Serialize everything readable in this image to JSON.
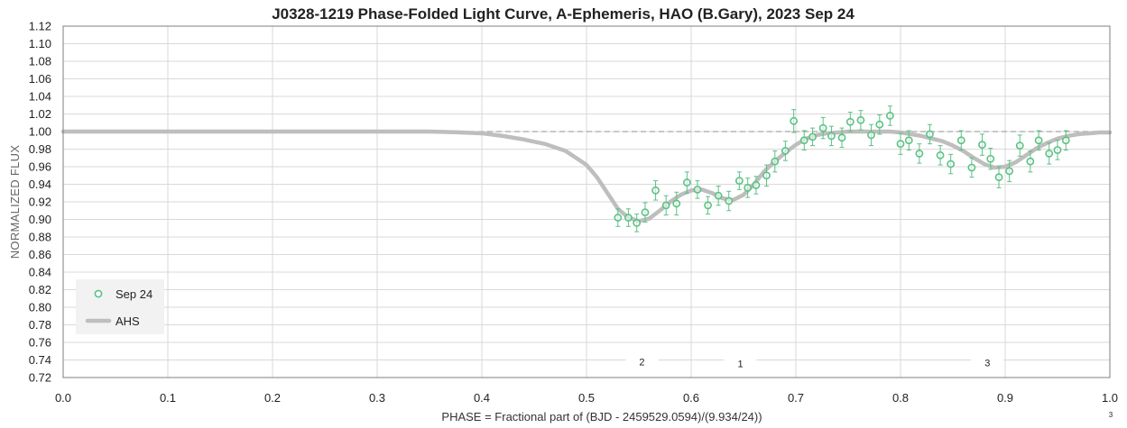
{
  "chart_data": {
    "type": "scatter",
    "title": "J0328-1219 Phase-Folded Light Curve, A-Ephemeris, HAO (B.Gary), 2023 Sep 24",
    "xlabel": "PHASE = Fractional part of (BJD - 2459529.0594)/(9.934/24))",
    "ylabel": "NORMALIZED FLUX",
    "xlim": [
      0.0,
      1.0
    ],
    "ylim": [
      0.72,
      1.12
    ],
    "x_ticks": [
      "0.0",
      "0.1",
      "0.2",
      "0.3",
      "0.4",
      "0.5",
      "0.6",
      "0.7",
      "0.8",
      "0.9",
      "1.0"
    ],
    "y_ticks": [
      "0.72",
      "0.74",
      "0.76",
      "0.78",
      "0.80",
      "0.82",
      "0.84",
      "0.86",
      "0.88",
      "0.90",
      "0.92",
      "0.94",
      "0.96",
      "0.98",
      "1.00",
      "1.02",
      "1.04",
      "1.06",
      "1.08",
      "1.10",
      "1.12"
    ],
    "grid": true,
    "reference_line": 1.0,
    "legend_position": "bottom-left",
    "series": [
      {
        "name": "Sep 24",
        "style": "markers-with-errorbars",
        "color": "#5cc185",
        "x": [
          0.53,
          0.54,
          0.548,
          0.556,
          0.566,
          0.576,
          0.586,
          0.596,
          0.606,
          0.616,
          0.626,
          0.636,
          0.646,
          0.654,
          0.662,
          0.672,
          0.68,
          0.69,
          0.698,
          0.708,
          0.716,
          0.726,
          0.734,
          0.744,
          0.752,
          0.762,
          0.772,
          0.78,
          0.79,
          0.8,
          0.808,
          0.818,
          0.828,
          0.838,
          0.848,
          0.858,
          0.868,
          0.878,
          0.886,
          0.894,
          0.904,
          0.914,
          0.924,
          0.932,
          0.942,
          0.95,
          0.958
        ],
        "y": [
          0.902,
          0.902,
          0.896,
          0.908,
          0.933,
          0.916,
          0.918,
          0.942,
          0.934,
          0.916,
          0.927,
          0.921,
          0.944,
          0.936,
          0.939,
          0.95,
          0.966,
          0.978,
          1.012,
          0.99,
          0.994,
          1.004,
          0.995,
          0.993,
          1.011,
          1.013,
          0.996,
          1.008,
          1.018,
          0.986,
          0.99,
          0.975,
          0.997,
          0.973,
          0.963,
          0.99,
          0.959,
          0.985,
          0.969,
          0.948,
          0.955,
          0.984,
          0.966,
          0.99,
          0.975,
          0.979,
          0.99
        ],
        "yerr": [
          0.01,
          0.01,
          0.01,
          0.011,
          0.011,
          0.011,
          0.013,
          0.012,
          0.01,
          0.01,
          0.011,
          0.011,
          0.01,
          0.011,
          0.01,
          0.012,
          0.012,
          0.011,
          0.013,
          0.011,
          0.01,
          0.012,
          0.011,
          0.011,
          0.011,
          0.011,
          0.012,
          0.011,
          0.011,
          0.012,
          0.011,
          0.011,
          0.011,
          0.011,
          0.011,
          0.011,
          0.011,
          0.012,
          0.012,
          0.012,
          0.012,
          0.012,
          0.012,
          0.011,
          0.012,
          0.011,
          0.011
        ]
      },
      {
        "name": "AHS",
        "style": "line",
        "color": "#bebebe",
        "x": [
          0.0,
          0.35,
          0.38,
          0.4,
          0.42,
          0.44,
          0.46,
          0.48,
          0.5,
          0.51,
          0.52,
          0.53,
          0.54,
          0.55,
          0.56,
          0.57,
          0.58,
          0.59,
          0.6,
          0.61,
          0.62,
          0.63,
          0.64,
          0.65,
          0.66,
          0.67,
          0.68,
          0.69,
          0.7,
          0.71,
          0.72,
          0.73,
          0.74,
          0.75,
          0.76,
          0.77,
          0.78,
          0.79,
          0.8,
          0.81,
          0.82,
          0.83,
          0.84,
          0.85,
          0.86,
          0.87,
          0.88,
          0.89,
          0.9,
          0.91,
          0.92,
          0.93,
          0.94,
          0.95,
          0.96,
          0.97,
          0.98,
          0.99,
          1.0
        ],
        "y": [
          1.0,
          1.0,
          0.999,
          0.998,
          0.995,
          0.991,
          0.986,
          0.978,
          0.962,
          0.948,
          0.93,
          0.912,
          0.902,
          0.898,
          0.901,
          0.91,
          0.92,
          0.928,
          0.933,
          0.934,
          0.93,
          0.924,
          0.922,
          0.928,
          0.94,
          0.955,
          0.966,
          0.976,
          0.985,
          0.992,
          0.996,
          0.998,
          0.999,
          1.0,
          1.0,
          1.0,
          1.0,
          1.0,
          0.999,
          0.997,
          0.995,
          0.992,
          0.989,
          0.984,
          0.978,
          0.97,
          0.963,
          0.959,
          0.96,
          0.965,
          0.973,
          0.981,
          0.987,
          0.992,
          0.995,
          0.997,
          0.998,
          0.999,
          0.999
        ]
      }
    ],
    "annotations": [
      {
        "text": "2",
        "x": 0.553,
        "y": 0.736
      },
      {
        "text": "1",
        "x": 0.647,
        "y": 0.734
      },
      {
        "text": "3",
        "x": 0.883,
        "y": 0.735
      }
    ],
    "corner_mark": "3"
  }
}
